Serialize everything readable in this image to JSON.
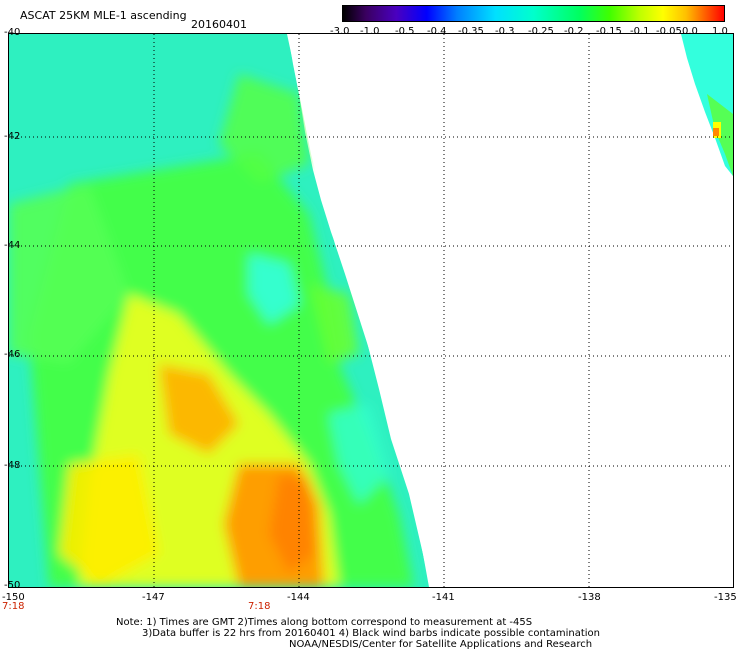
{
  "header": {
    "title": "ASCAT 25KM MLE-1 ascending",
    "date": "20160401"
  },
  "colorbar": {
    "ticks": [
      "-3.0",
      "-1.0",
      "-0.5",
      "-0.4",
      "-0.35",
      "-0.3",
      "-0.25",
      "-0.2",
      "-0.15",
      "-0.1",
      "-0.05",
      "0.0",
      "1.0"
    ]
  },
  "map": {
    "lat_labels": [
      "-40",
      "-42",
      "-44",
      "-46",
      "-48",
      "-50"
    ],
    "lon_labels": [
      "-150",
      "-147",
      "-144",
      "-141",
      "-138",
      "-135"
    ],
    "time_labels": [
      "7:18",
      "7:18"
    ]
  },
  "footer": {
    "line1": "Note: 1) Times are GMT 2)Times along bottom correspond to measurement at -45S",
    "line2": "3)Data buffer is 22 hrs from 20160401 4) Black wind barbs indicate possible contamination",
    "line3": "NOAA/NESDIS/Center for Satellite Applications and Research"
  },
  "colors": {
    "cyan": "#33ffdd",
    "green": "#44ff44",
    "yellow": "#ffee00",
    "orange": "#ff9900"
  }
}
